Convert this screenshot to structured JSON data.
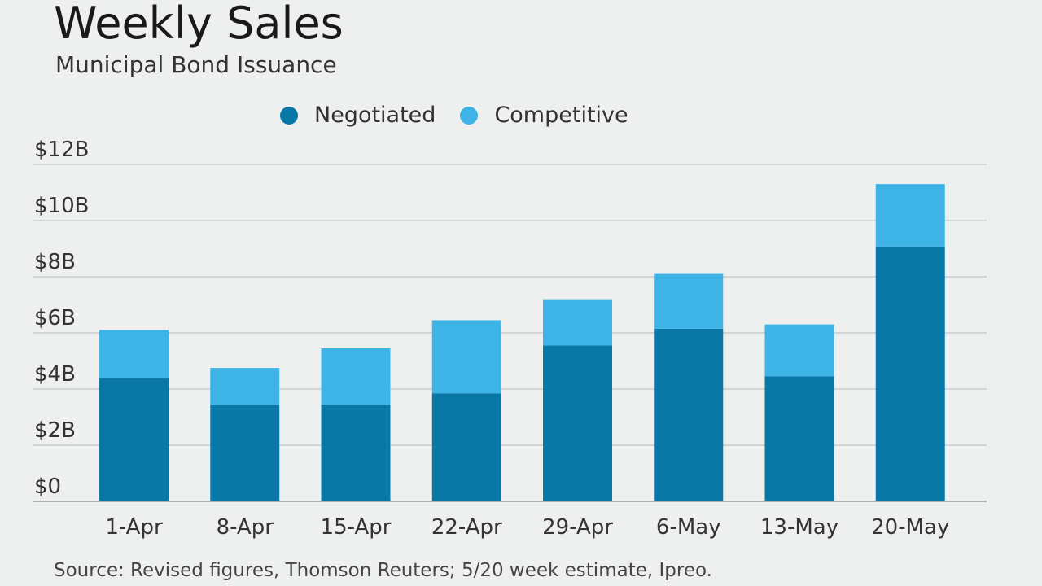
{
  "chart_data": {
    "type": "bar",
    "stacked": true,
    "title": "Weekly Sales",
    "subtitle": "Municipal Bond Issuance",
    "categories": [
      "1-Apr",
      "8-Apr",
      "15-Apr",
      "22-Apr",
      "29-Apr",
      "6-May",
      "13-May",
      "20-May"
    ],
    "series": [
      {
        "name": "Negotiated",
        "color": "#0a78a6",
        "values": [
          4.4,
          3.45,
          3.45,
          3.85,
          5.55,
          6.15,
          4.45,
          9.05
        ]
      },
      {
        "name": "Competitive",
        "color": "#3db3e6",
        "values": [
          1.7,
          1.3,
          2.0,
          2.6,
          1.65,
          1.95,
          1.85,
          2.25
        ]
      }
    ],
    "y_ticks": [
      {
        "value": 0,
        "label": "$0"
      },
      {
        "value": 2,
        "label": "$2B"
      },
      {
        "value": 4,
        "label": "$4B"
      },
      {
        "value": 6,
        "label": "$6B"
      },
      {
        "value": 8,
        "label": "$8B"
      },
      {
        "value": 10,
        "label": "$10B"
      },
      {
        "value": 12,
        "label": "$12B"
      }
    ],
    "ylim": [
      0,
      12
    ],
    "grid": true,
    "legend_position": "top-center",
    "source": "Source: Revised figures, Thomson Reuters; 5/20 week estimate, Ipreo."
  }
}
